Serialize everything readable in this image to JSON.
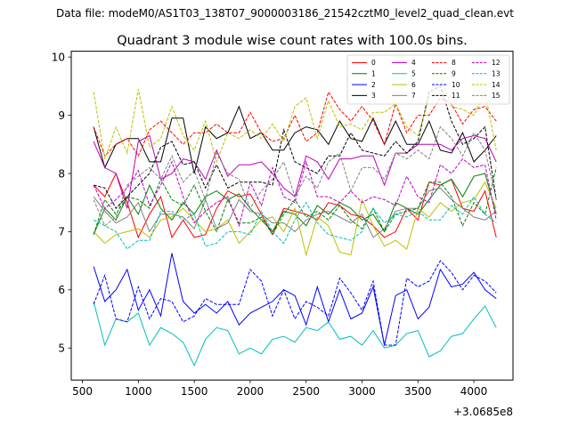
{
  "chart_data": {
    "type": "line",
    "suptitle": "Data file: modeM0/AS1T03_138T07_9000003186_21542cztM0_level2_quad_clean.evt",
    "title": "Quadrant 3 module wise count rates with 100.0s bins.",
    "xlabel": "",
    "ylabel": "",
    "x_offset_label": "+3.0685e8",
    "xlim": [
      400,
      4350
    ],
    "ylim": [
      4.45,
      10.1
    ],
    "xticks": [
      500,
      1000,
      1500,
      2000,
      2500,
      3000,
      3500,
      4000
    ],
    "xtick_labels": [
      "500",
      "1000",
      "1500",
      "2000",
      "2500",
      "3000",
      "3500",
      "4000"
    ],
    "yticks": [
      5,
      6,
      7,
      8,
      9,
      10
    ],
    "ytick_labels": [
      "5",
      "6",
      "7",
      "8",
      "9",
      "10"
    ],
    "legend_position": "upper right",
    "x": [
      600,
      700,
      800,
      900,
      1000,
      1100,
      1200,
      1300,
      1400,
      1500,
      1600,
      1700,
      1800,
      1900,
      2000,
      2100,
      2200,
      2300,
      2400,
      2500,
      2600,
      2700,
      2800,
      2900,
      3000,
      3100,
      3200,
      3300,
      3400,
      3500,
      3600,
      3700,
      3800,
      3900,
      4000,
      4100,
      4200
    ],
    "series": [
      {
        "name": "0",
        "color": "#ff0000",
        "dash": "solid",
        "values": [
          7.8,
          7.6,
          8.0,
          7.5,
          6.9,
          7.3,
          7.6,
          6.9,
          7.2,
          6.9,
          6.95,
          7.4,
          7.7,
          7.6,
          7.65,
          7.3,
          6.95,
          7.4,
          7.35,
          7.3,
          7.2,
          7.5,
          7.45,
          7.3,
          7.25,
          7.1,
          6.9,
          7.0,
          7.4,
          7.2,
          7.85,
          7.8,
          7.9,
          7.4,
          7.35,
          7.7,
          6.9
        ]
      },
      {
        "name": "1",
        "color": "#008000",
        "dash": "solid",
        "values": [
          6.95,
          7.4,
          7.2,
          7.6,
          7.3,
          7.8,
          7.4,
          7.2,
          7.5,
          7.3,
          7.6,
          7.7,
          7.55,
          7.65,
          7.4,
          7.2,
          7.0,
          7.35,
          7.3,
          7.1,
          7.45,
          7.3,
          7.5,
          7.4,
          7.2,
          7.3,
          7.0,
          7.5,
          7.4,
          7.3,
          7.55,
          7.8,
          7.9,
          7.6,
          7.95,
          8.0,
          7.3
        ]
      },
      {
        "name": "2",
        "color": "#0000ff",
        "dash": "solid",
        "values": [
          6.4,
          5.8,
          6.0,
          6.35,
          5.65,
          6.0,
          5.55,
          6.63,
          5.8,
          5.6,
          5.75,
          5.6,
          5.8,
          5.4,
          5.6,
          5.7,
          5.8,
          6.0,
          5.9,
          5.4,
          6.05,
          5.45,
          6.0,
          5.5,
          5.6,
          6.05,
          5.05,
          5.9,
          6.0,
          5.5,
          5.7,
          6.35,
          6.05,
          6.1,
          6.3,
          6.0,
          5.85
        ]
      },
      {
        "name": "3",
        "color": "#000000",
        "dash": "solid",
        "values": [
          8.8,
          8.1,
          8.5,
          8.6,
          8.6,
          8.2,
          8.2,
          8.95,
          8.95,
          8.0,
          8.8,
          8.6,
          8.7,
          9.15,
          8.6,
          8.7,
          8.4,
          8.4,
          8.7,
          8.8,
          8.75,
          8.5,
          8.9,
          8.6,
          8.55,
          8.95,
          8.5,
          8.9,
          8.5,
          8.5,
          8.9,
          8.4,
          8.35,
          8.7,
          8.2,
          8.4,
          8.65
        ]
      },
      {
        "name": "4",
        "color": "#bf00bf",
        "dash": "solid",
        "values": [
          8.55,
          8.1,
          8.0,
          7.4,
          8.55,
          8.65,
          7.9,
          8.0,
          8.25,
          8.2,
          7.9,
          8.4,
          7.95,
          8.15,
          8.15,
          8.2,
          8.0,
          7.75,
          7.6,
          8.3,
          8.2,
          7.9,
          8.25,
          8.25,
          8.3,
          8.3,
          7.8,
          8.35,
          8.35,
          8.5,
          8.5,
          8.5,
          8.4,
          8.6,
          8.65,
          8.6,
          8.2
        ]
      },
      {
        "name": "5",
        "color": "#00bfbf",
        "dash": "solid",
        "values": [
          5.8,
          5.05,
          5.5,
          5.45,
          5.6,
          5.05,
          5.35,
          5.25,
          5.1,
          4.7,
          5.15,
          5.35,
          5.3,
          4.9,
          5.0,
          4.9,
          5.15,
          5.2,
          5.1,
          5.35,
          5.3,
          5.45,
          5.15,
          5.2,
          5.05,
          5.3,
          5.0,
          5.05,
          5.25,
          5.3,
          4.85,
          4.95,
          5.2,
          5.25,
          5.5,
          5.72,
          5.35
        ]
      },
      {
        "name": "6",
        "color": "#bfbf00",
        "dash": "solid",
        "values": [
          7.0,
          6.8,
          6.95,
          7.0,
          7.05,
          6.9,
          7.2,
          7.25,
          7.4,
          7.2,
          7.0,
          7.05,
          7.2,
          6.8,
          7.0,
          7.2,
          7.25,
          7.0,
          7.4,
          6.6,
          7.25,
          7.1,
          6.65,
          6.6,
          7.55,
          7.1,
          6.75,
          6.85,
          6.7,
          7.4,
          7.25,
          7.5,
          7.35,
          7.5,
          7.55,
          7.85,
          7.4
        ]
      },
      {
        "name": "7",
        "color": "#808080",
        "dash": "solid",
        "values": [
          7.6,
          7.35,
          7.15,
          7.25,
          7.5,
          7.0,
          7.3,
          7.3,
          7.25,
          7.05,
          7.55,
          7.05,
          7.15,
          7.55,
          7.35,
          7.3,
          7.15,
          7.15,
          7.0,
          7.2,
          7.3,
          7.35,
          7.25,
          7.15,
          7.3,
          6.9,
          7.05,
          7.35,
          7.4,
          7.4,
          7.7,
          7.75,
          7.55,
          7.4,
          7.25,
          7.2,
          7.35
        ]
      },
      {
        "name": "8",
        "color": "#ff0000",
        "dash": "dashed",
        "values": [
          8.8,
          8.3,
          8.5,
          8.6,
          8.3,
          8.75,
          8.9,
          8.7,
          8.5,
          8.7,
          8.7,
          8.85,
          8.7,
          8.7,
          9.05,
          8.7,
          8.55,
          8.6,
          9.0,
          8.55,
          8.7,
          9.4,
          9.1,
          8.9,
          9.15,
          8.9,
          8.5,
          9.2,
          8.7,
          9.0,
          9.0,
          9.3,
          9.2,
          8.85,
          9.1,
          9.15,
          8.9
        ]
      },
      {
        "name": "9",
        "color": "#008000",
        "dash": "dashed",
        "values": [
          6.95,
          7.55,
          7.3,
          7.6,
          7.55,
          7.4,
          7.9,
          7.55,
          7.45,
          7.8,
          7.35,
          7.0,
          7.55,
          7.15,
          7.15,
          7.25,
          6.95,
          7.3,
          7.55,
          7.25,
          7.35,
          7.2,
          7.45,
          7.2,
          7.05,
          7.4,
          7.0,
          7.3,
          7.35,
          7.4,
          7.85,
          7.85,
          7.6,
          7.1,
          7.5,
          7.3,
          8.1
        ]
      },
      {
        "name": "10",
        "color": "#0000ff",
        "dash": "dashed",
        "values": [
          5.75,
          6.25,
          5.5,
          5.45,
          6.05,
          5.5,
          5.85,
          5.8,
          5.45,
          5.55,
          5.85,
          5.75,
          5.75,
          5.75,
          6.35,
          6.15,
          5.55,
          6.0,
          5.5,
          5.8,
          5.7,
          5.55,
          6.2,
          5.95,
          5.65,
          6.15,
          5.05,
          5.05,
          6.2,
          6.05,
          6.15,
          6.5,
          6.3,
          6.0,
          6.25,
          6.15,
          5.95
        ]
      },
      {
        "name": "11",
        "color": "#000000",
        "dash": "dashed",
        "values": [
          7.8,
          7.75,
          7.4,
          7.6,
          7.8,
          8.0,
          8.45,
          8.55,
          8.15,
          8.2,
          7.75,
          8.15,
          7.75,
          7.85,
          7.85,
          7.85,
          7.8,
          8.75,
          8.2,
          8.1,
          8.0,
          8.3,
          8.3,
          8.7,
          8.4,
          8.35,
          8.3,
          8.55,
          8.35,
          8.55,
          9.4,
          9.5,
          8.9,
          8.5,
          8.6,
          8.8,
          7.55
        ]
      },
      {
        "name": "12",
        "color": "#bf00bf",
        "dash": "dashed",
        "values": [
          7.8,
          7.4,
          7.55,
          7.75,
          8.05,
          7.45,
          7.8,
          8.2,
          7.6,
          7.15,
          7.35,
          7.5,
          7.6,
          7.1,
          7.85,
          7.45,
          8.1,
          7.6,
          7.5,
          8.2,
          7.6,
          7.6,
          7.5,
          7.7,
          7.5,
          7.6,
          7.55,
          7.45,
          7.95,
          7.6,
          7.5,
          8.15,
          8.0,
          8.25,
          8.1,
          8.15,
          7.2
        ]
      },
      {
        "name": "13",
        "color": "#00bfbf",
        "dash": "dashed",
        "values": [
          7.2,
          7.1,
          7.0,
          6.7,
          6.85,
          6.85,
          7.35,
          7.35,
          7.2,
          7.3,
          6.75,
          6.8,
          7.0,
          7.0,
          6.95,
          7.35,
          7.0,
          6.8,
          7.2,
          7.5,
          7.15,
          6.95,
          6.9,
          6.85,
          7.0,
          7.4,
          7.15,
          7.3,
          7.25,
          7.35,
          7.2,
          7.2,
          7.45,
          7.3,
          7.6,
          7.3,
          7.15
        ]
      },
      {
        "name": "14",
        "color": "#bfbf00",
        "dash": "dashed",
        "values": [
          9.4,
          8.25,
          8.8,
          8.35,
          9.45,
          8.45,
          8.6,
          9.15,
          8.65,
          8.4,
          8.9,
          8.2,
          8.7,
          8.6,
          8.75,
          8.6,
          8.85,
          8.55,
          9.15,
          9.3,
          8.6,
          9.25,
          8.8,
          8.85,
          8.75,
          9.05,
          9.05,
          9.2,
          8.8,
          8.65,
          9.3,
          9.7,
          9.15,
          9.1,
          9.0,
          9.4,
          8.4
        ]
      },
      {
        "name": "15",
        "color": "#808080",
        "dash": "dashed",
        "values": [
          7.55,
          7.1,
          7.25,
          7.8,
          7.95,
          8.1,
          7.9,
          8.3,
          7.85,
          8.05,
          7.55,
          8.35,
          8.0,
          7.9,
          7.4,
          7.7,
          7.9,
          8.2,
          7.6,
          7.95,
          7.75,
          8.2,
          8.35,
          7.7,
          8.1,
          8.1,
          7.9,
          8.35,
          8.25,
          8.4,
          8.25,
          8.8,
          8.6,
          8.3,
          8.7,
          8.4,
          7.55
        ]
      }
    ]
  }
}
